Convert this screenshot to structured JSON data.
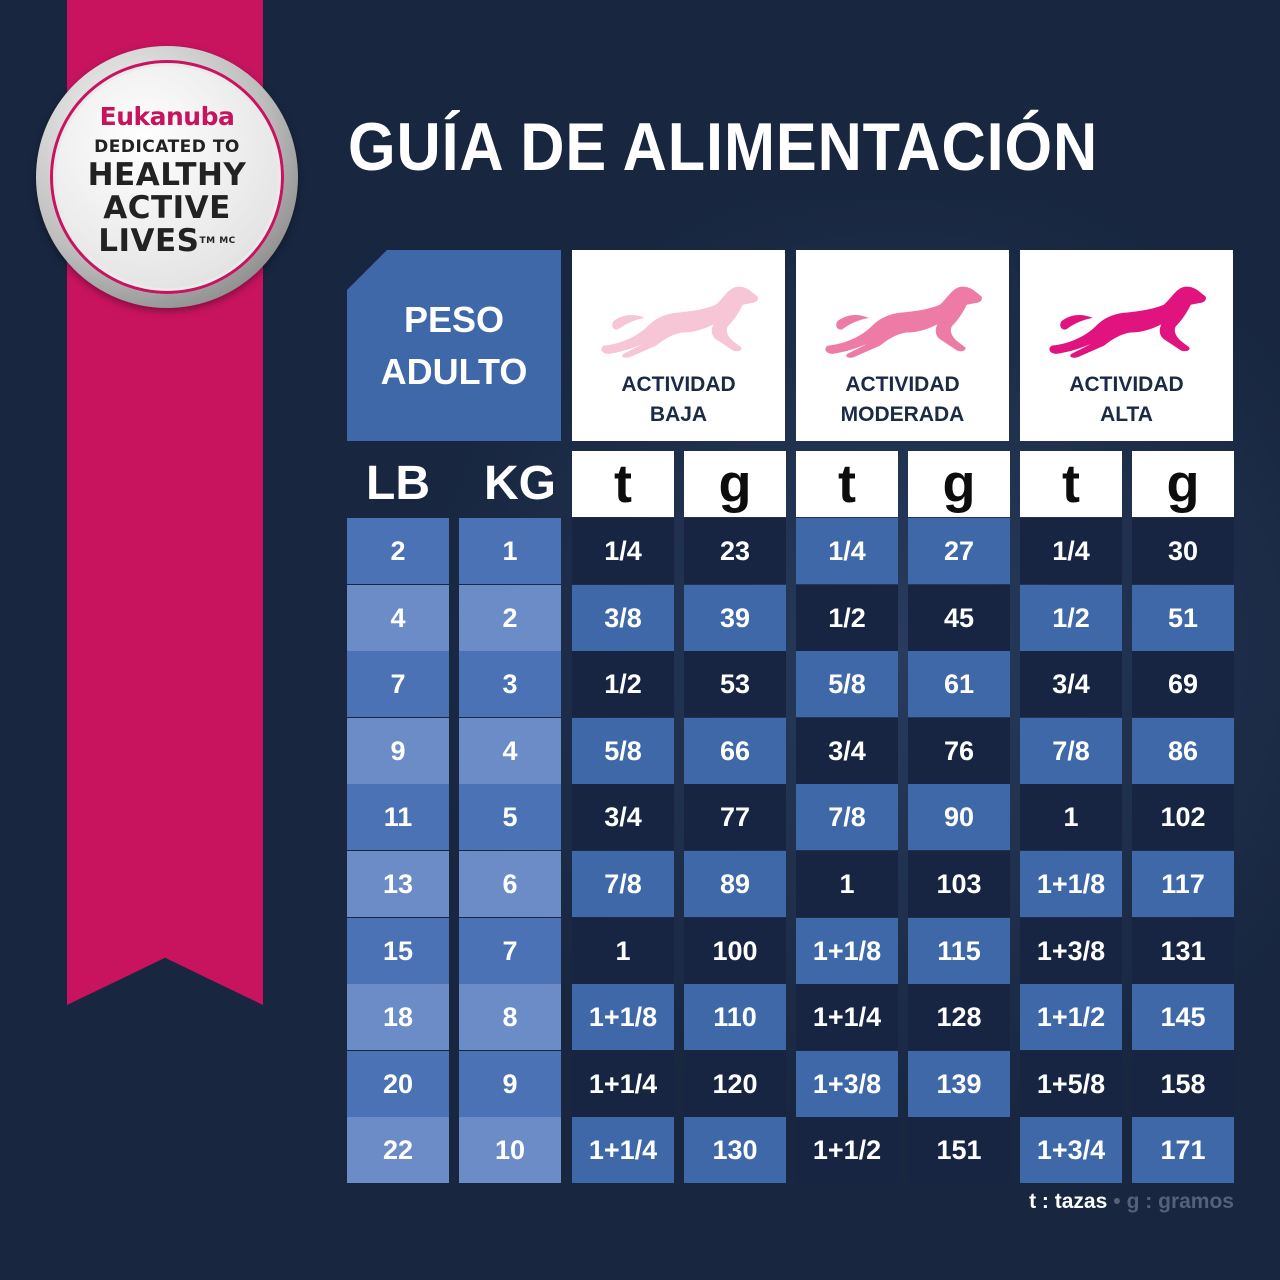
{
  "badge": {
    "brand": "Eukanuba",
    "dedicated": "DEDICATED TO",
    "line1": "HEALTHY",
    "line2": "ACTIVE",
    "line3": "LIVES",
    "tm": "TM MC"
  },
  "title": "GUÍA DE ALIMENTACIÓN",
  "peso": {
    "line1": "PESO",
    "line2": "ADULTO"
  },
  "activities": [
    {
      "line1": "ACTIVIDAD",
      "line2": "BAJA",
      "color": "#f7c6d6"
    },
    {
      "line1": "ACTIVIDAD",
      "line2": "MODERADA",
      "color": "#ee7aa6"
    },
    {
      "line1": "ACTIVIDAD",
      "line2": "ALTA",
      "color": "#e0137f"
    }
  ],
  "units": {
    "lb": "LB",
    "kg": "KG",
    "t": "t",
    "g": "g"
  },
  "rows": [
    [
      "2",
      "1",
      "1/4",
      "23",
      "1/4",
      "27",
      "1/4",
      "30"
    ],
    [
      "4",
      "2",
      "3/8",
      "39",
      "1/2",
      "45",
      "1/2",
      "51"
    ],
    [
      "7",
      "3",
      "1/2",
      "53",
      "5/8",
      "61",
      "3/4",
      "69"
    ],
    [
      "9",
      "4",
      "5/8",
      "66",
      "3/4",
      "76",
      "7/8",
      "86"
    ],
    [
      "11",
      "5",
      "3/4",
      "77",
      "7/8",
      "90",
      "1",
      "102"
    ],
    [
      "13",
      "6",
      "7/8",
      "89",
      "1",
      "103",
      "1+1/8",
      "117"
    ],
    [
      "15",
      "7",
      "1",
      "100",
      "1+1/8",
      "115",
      "1+3/8",
      "131"
    ],
    [
      "18",
      "8",
      "1+1/8",
      "110",
      "1+1/4",
      "128",
      "1+1/2",
      "145"
    ],
    [
      "20",
      "9",
      "1+1/4",
      "120",
      "1+3/8",
      "139",
      "1+5/8",
      "158"
    ],
    [
      "22",
      "10",
      "1+1/4",
      "130",
      "1+1/2",
      "151",
      "1+3/4",
      "171"
    ]
  ],
  "legend": {
    "t": "t : tazas",
    "g": "g : gramos"
  }
}
